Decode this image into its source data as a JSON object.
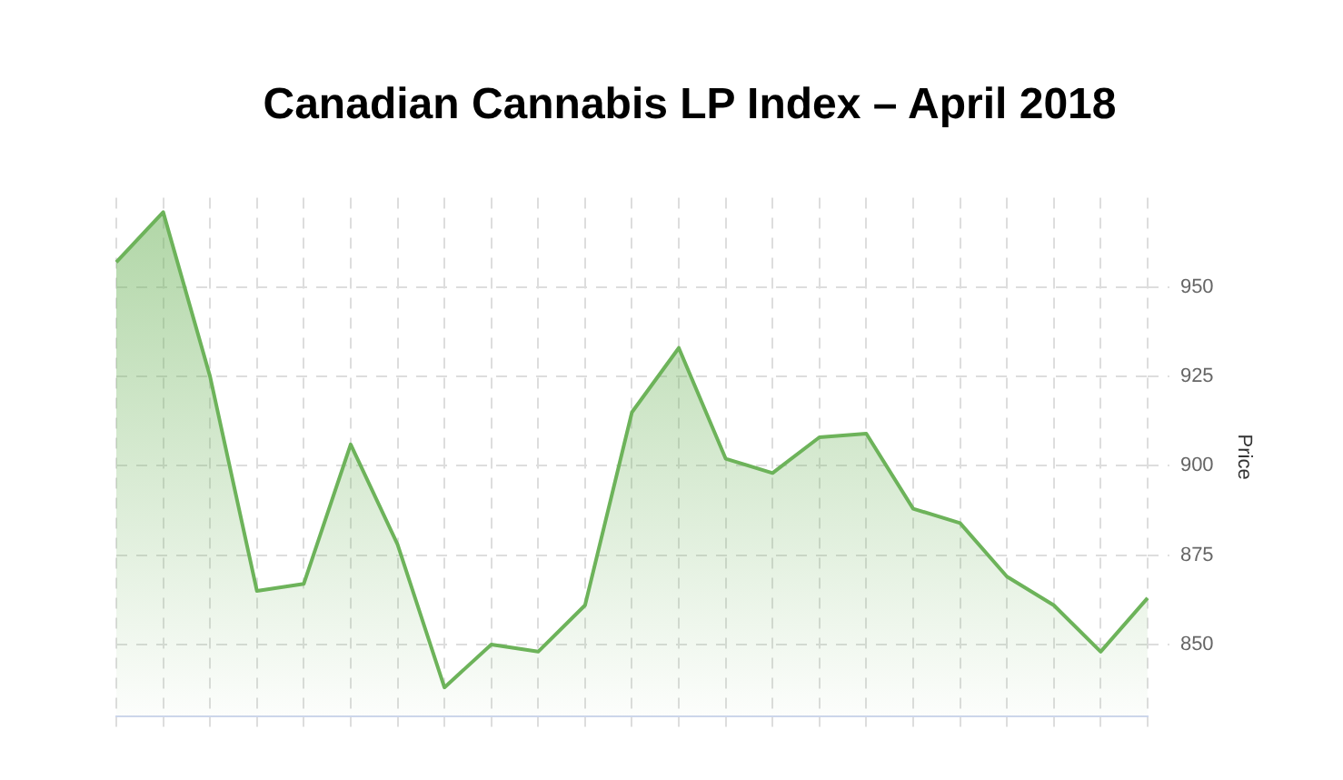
{
  "chart_data": {
    "type": "area",
    "title": "Canadian Cannabis LP Index – April 2018",
    "ylabel": "Price",
    "categories": [
      null,
      null,
      null,
      null,
      null,
      null,
      null,
      null,
      null,
      null,
      null,
      null,
      null,
      null,
      null,
      null,
      null,
      null,
      null,
      null,
      null,
      null,
      null
    ],
    "series": [
      {
        "color": "#6db35a",
        "values": [
          957,
          971,
          925,
          865,
          867,
          906,
          878,
          838,
          850,
          848,
          861,
          915,
          933,
          902,
          898,
          908,
          909,
          888,
          884,
          869,
          861,
          848,
          863
        ]
      }
    ],
    "ylim": [
      830,
      975
    ],
    "yticks": [
      850,
      875,
      900,
      925,
      950
    ],
    "grid": true
  }
}
